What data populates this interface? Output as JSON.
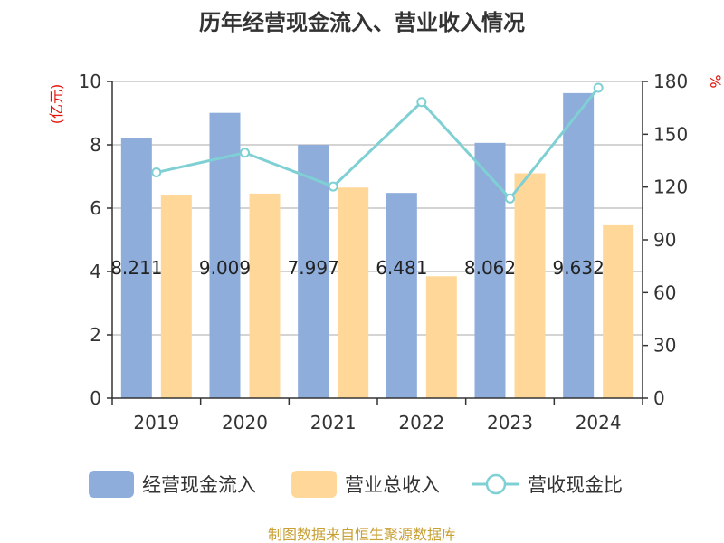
{
  "colors": {
    "bar_cashflow": "#8EADDB",
    "bar_revenue": "#FFD899",
    "line_ratio": "#7FD0D4",
    "axis": "#333333",
    "grid": "#BBBBBB",
    "unit_red": "#E3120B",
    "source": "#C8A034"
  },
  "chart_data": {
    "type": "bar",
    "title": "历年经营现金流入、营业收入情况",
    "left_unit": "(亿元)",
    "right_unit": "%",
    "categories": [
      "2019",
      "2020",
      "2021",
      "2022",
      "2023",
      "2024"
    ],
    "left_axis": {
      "min": 0,
      "max": 10,
      "ticks": [
        "0",
        "2",
        "4",
        "6",
        "8",
        "10"
      ]
    },
    "right_axis": {
      "min": 0,
      "max": 180,
      "ticks": [
        "0",
        "30",
        "60",
        "90",
        "120",
        "150",
        "180"
      ]
    },
    "series": [
      {
        "name": "经营现金流入",
        "type": "bar",
        "axis": "left",
        "values": [
          8.211,
          9.009,
          7.997,
          6.481,
          8.062,
          9.632
        ],
        "labels": [
          "8.211",
          "9.009",
          "7.997",
          "6.481",
          "8.062",
          "9.632"
        ]
      },
      {
        "name": "营业总收入",
        "type": "bar",
        "axis": "left",
        "values": [
          6.4,
          6.46,
          6.65,
          3.85,
          7.1,
          5.46
        ]
      },
      {
        "name": "营收现金比",
        "type": "line",
        "axis": "right",
        "values": [
          128.3,
          139.5,
          120.3,
          168.3,
          113.5,
          176.4
        ]
      }
    ],
    "grid": true,
    "legend_position": "bottom"
  },
  "footer": {
    "source": "制图数据来自恒生聚源数据库"
  }
}
